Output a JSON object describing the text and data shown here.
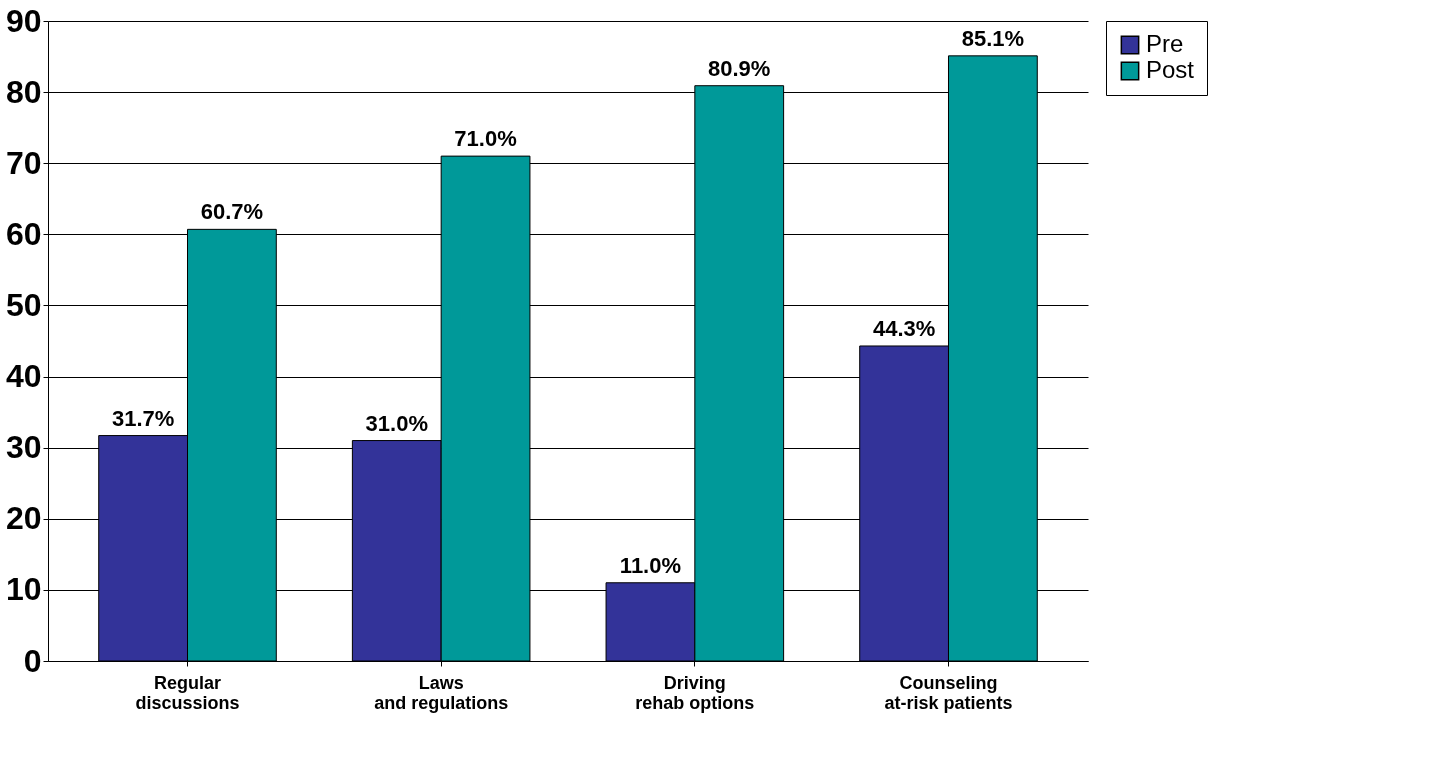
{
  "chart_data": {
    "type": "bar",
    "categories": [
      "Regular discussions",
      "Laws and regulations",
      "Driving rehab options",
      "Counseling at-risk patients"
    ],
    "series": [
      {
        "name": "Pre",
        "color": "#333399",
        "values": [
          31.7,
          31.0,
          11.0,
          44.3
        ],
        "value_labels": [
          "31.7%",
          "31.0%",
          "11.0%",
          "44.3%"
        ]
      },
      {
        "name": "Post",
        "color": "#009999",
        "values": [
          60.7,
          71.0,
          80.9,
          85.1
        ],
        "value_labels": [
          "60.7%",
          "71.0%",
          "80.9%",
          "85.1%"
        ]
      }
    ],
    "ylim": [
      0,
      90
    ],
    "yticks": [
      0,
      10,
      20,
      30,
      40,
      50,
      60,
      70,
      80,
      90
    ],
    "grid": "y",
    "legend": "right"
  }
}
